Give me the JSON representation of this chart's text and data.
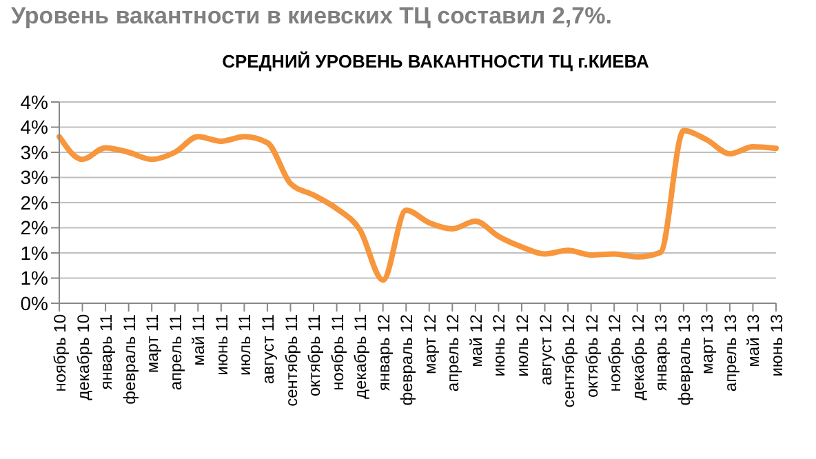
{
  "chart_data": {
    "type": "line",
    "title": "Уровень вакантности в киевских ТЦ составил 2,7%.",
    "subtitle": "СРЕДНИЙ УРОВЕНЬ ВАКАНТНОСТИ ТЦ г.КИЕВА",
    "categories": [
      "ноябрь 10",
      "декабрь 10",
      "январь 11",
      "февраль 11",
      "март 11",
      "апрель 11",
      "май 11",
      "июнь 11",
      "июль 11",
      "август 11",
      "сентябрь 11",
      "октябрь 11",
      "ноябрь 11",
      "декабрь 11",
      "январь 12",
      "февраль 12",
      "март 12",
      "апрель 12",
      "май 12",
      "июнь 12",
      "июль 12",
      "август 12",
      "сентябрь 12",
      "октябрь 12",
      "ноябрь 12",
      "декабрь 12",
      "январь 13",
      "февраль 13",
      "март 13",
      "апрель 13",
      "май 13",
      "июнь 13"
    ],
    "series": [
      {
        "color": "#f7963c",
        "values": [
          3.31,
          2.86,
          3.09,
          3.0,
          2.86,
          3.0,
          3.31,
          3.22,
          3.31,
          3.19,
          2.38,
          2.15,
          1.88,
          1.46,
          0.46,
          1.85,
          1.6,
          1.48,
          1.63,
          1.33,
          1.12,
          0.98,
          1.05,
          0.96,
          0.98,
          0.92,
          1.01,
          3.43,
          3.25,
          2.97,
          3.11,
          3.08
        ]
      }
    ],
    "ylim": [
      0,
      4
    ],
    "yticks": [
      {
        "value": 0,
        "label": "0%"
      },
      {
        "value": 0.5,
        "label": "1%"
      },
      {
        "value": 1,
        "label": "1%"
      },
      {
        "value": 1.5,
        "label": "2%"
      },
      {
        "value": 2,
        "label": "2%"
      },
      {
        "value": 2.5,
        "label": "3%"
      },
      {
        "value": 3,
        "label": "3%"
      },
      {
        "value": 3.5,
        "label": "4%"
      },
      {
        "value": 4,
        "label": "4%"
      }
    ],
    "grid": "y",
    "marker": "none",
    "line_style": "solid"
  }
}
